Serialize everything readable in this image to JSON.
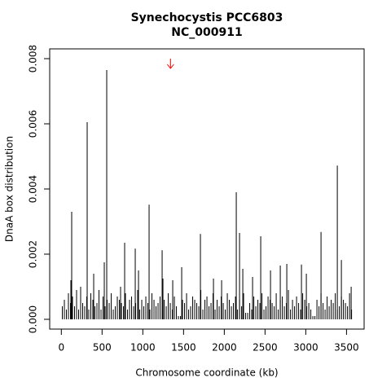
{
  "chart_data": {
    "type": "spike",
    "title": "Synechocystis PCC6803",
    "subtitle": "NC_000911",
    "x_label": "Chromosome coordinate (kb)",
    "y_label": "DnaA box distribution",
    "color": "#000000",
    "xlim": [
      -143,
      3716
    ],
    "ylim": [
      -0.0003,
      0.0083
    ],
    "xticks": [
      0,
      500,
      1000,
      1500,
      2000,
      2500,
      3000,
      3500
    ],
    "yticks": [
      {
        "value": 0,
        "label": "0.000"
      },
      {
        "value": 0.002,
        "label": "0.002"
      },
      {
        "value": 0.004,
        "label": "0.004"
      },
      {
        "value": 0.006,
        "label": "0.006"
      },
      {
        "value": 0.008,
        "label": "0.008"
      }
    ],
    "arrow": {
      "x": 1340,
      "y_from": 0.008,
      "y_to": 0.0077,
      "color": "#ff0000"
    },
    "x": [
      12,
      37,
      62,
      87,
      112,
      137,
      162,
      187,
      212,
      237,
      262,
      287,
      312,
      337,
      362,
      387,
      412,
      437,
      462,
      487,
      512,
      537,
      562,
      587,
      612,
      637,
      662,
      687,
      712,
      737,
      762,
      787,
      812,
      837,
      862,
      887,
      912,
      937,
      962,
      987,
      1012,
      1037,
      1062,
      1087,
      1112,
      1137,
      1162,
      1187,
      1212,
      1237,
      1262,
      1287,
      1312,
      1337,
      1362,
      1387,
      1412,
      1437,
      1462,
      1487,
      1512,
      1537,
      1562,
      1587,
      1612,
      1637,
      1662,
      1687,
      1712,
      1737,
      1762,
      1787,
      1812,
      1837,
      1862,
      1887,
      1912,
      1937,
      1962,
      1987,
      2012,
      2037,
      2062,
      2087,
      2112,
      2137,
      2162,
      2187,
      2212,
      2237,
      2262,
      2287,
      2312,
      2337,
      2362,
      2387,
      2412,
      2437,
      2462,
      2487,
      2512,
      2537,
      2562,
      2587,
      2612,
      2637,
      2662,
      2687,
      2712,
      2737,
      2762,
      2787,
      2812,
      2837,
      2862,
      2887,
      2912,
      2937,
      2962,
      2987,
      3012,
      3037,
      3062,
      3087,
      3112,
      3137,
      3162,
      3187,
      3212,
      3237,
      3262,
      3287,
      3312,
      3337,
      3362,
      3387,
      3412,
      3437,
      3462,
      3487,
      3512,
      3537,
      3562,
      127,
      317,
      557,
      527,
      777,
      907,
      1077,
      1237,
      1477,
      1707,
      1867,
      2147,
      2187,
      2227,
      2447,
      2687,
      2767,
      2947,
      3187,
      3387,
      3437,
      397,
      117,
      237,
      1247,
      1367,
      3007,
      3557,
      727,
      947,
      1967,
      2347,
      2567
    ],
    "values": [
      0.0004,
      0.0006,
      0.0003,
      0.0008,
      0.0005,
      0.0007,
      0.0004,
      0.0009,
      0.0003,
      0.0006,
      0.0005,
      0.0004,
      0.0007,
      0.0003,
      0.0008,
      0.0006,
      0.0004,
      0.0005,
      0.0009,
      0.0003,
      0.0007,
      0.0004,
      0.0006,
      0.0005,
      0.0008,
      0.0003,
      0.0004,
      0.0007,
      0.0006,
      0.0005,
      0.0004,
      0.0008,
      0.0003,
      0.0006,
      0.0007,
      0.0004,
      0.0005,
      0.0009,
      0.0003,
      0.0006,
      0.0004,
      0.0007,
      0.0005,
      0.0003,
      0.0008,
      0.0006,
      0.0004,
      0.0005,
      0.0007,
      0.0003,
      0.0006,
      0.0004,
      0.0008,
      0.0005,
      0.0003,
      0.0007,
      0.0004,
      0.0001,
      0.0001,
      0.0006,
      0.0005,
      0.0008,
      0.0003,
      0.0004,
      0.0007,
      0.0006,
      0.0005,
      0.0004,
      0.0009,
      0.0003,
      0.0006,
      0.0007,
      0.0004,
      0.0005,
      0.0008,
      0.0003,
      0.0006,
      0.0004,
      0.0007,
      0.0005,
      0.0003,
      0.0008,
      0.0006,
      0.0004,
      0.0005,
      0.0007,
      0.0003,
      0.0006,
      0.0004,
      0.0008,
      0.0002,
      0.0002,
      0.0005,
      0.0003,
      0.0007,
      0.0004,
      0.0006,
      0.0005,
      0.0008,
      0.0003,
      0.0004,
      0.0007,
      0.0006,
      0.0005,
      0.0004,
      0.0008,
      0.0003,
      0.0006,
      0.0007,
      0.0004,
      0.0005,
      0.0009,
      0.0003,
      0.0006,
      0.0004,
      0.0007,
      0.0005,
      0.0003,
      0.0008,
      0.0006,
      0.0004,
      0.0005,
      0.0003,
      0.0001,
      0.0001,
      0.0006,
      0.0004,
      0.0008,
      0.0005,
      0.0003,
      0.0007,
      0.0004,
      0.0006,
      0.0005,
      0.0008,
      0.0003,
      0.0004,
      0.0007,
      0.0006,
      0.0005,
      0.0004,
      0.0008,
      0.0003,
      0.0033,
      0.00605,
      0.00765,
      0.00175,
      0.00235,
      0.00217,
      0.00352,
      0.00212,
      0.0016,
      0.00262,
      0.00125,
      0.0039,
      0.00265,
      0.00155,
      0.00255,
      0.00165,
      0.0017,
      0.00168,
      0.00268,
      0.00472,
      0.00182,
      0.0014,
      0.0012,
      0.001,
      0.00125,
      0.0012,
      0.0014,
      0.001,
      0.001,
      0.0015,
      0.0012,
      0.0013,
      0.0015
    ]
  }
}
